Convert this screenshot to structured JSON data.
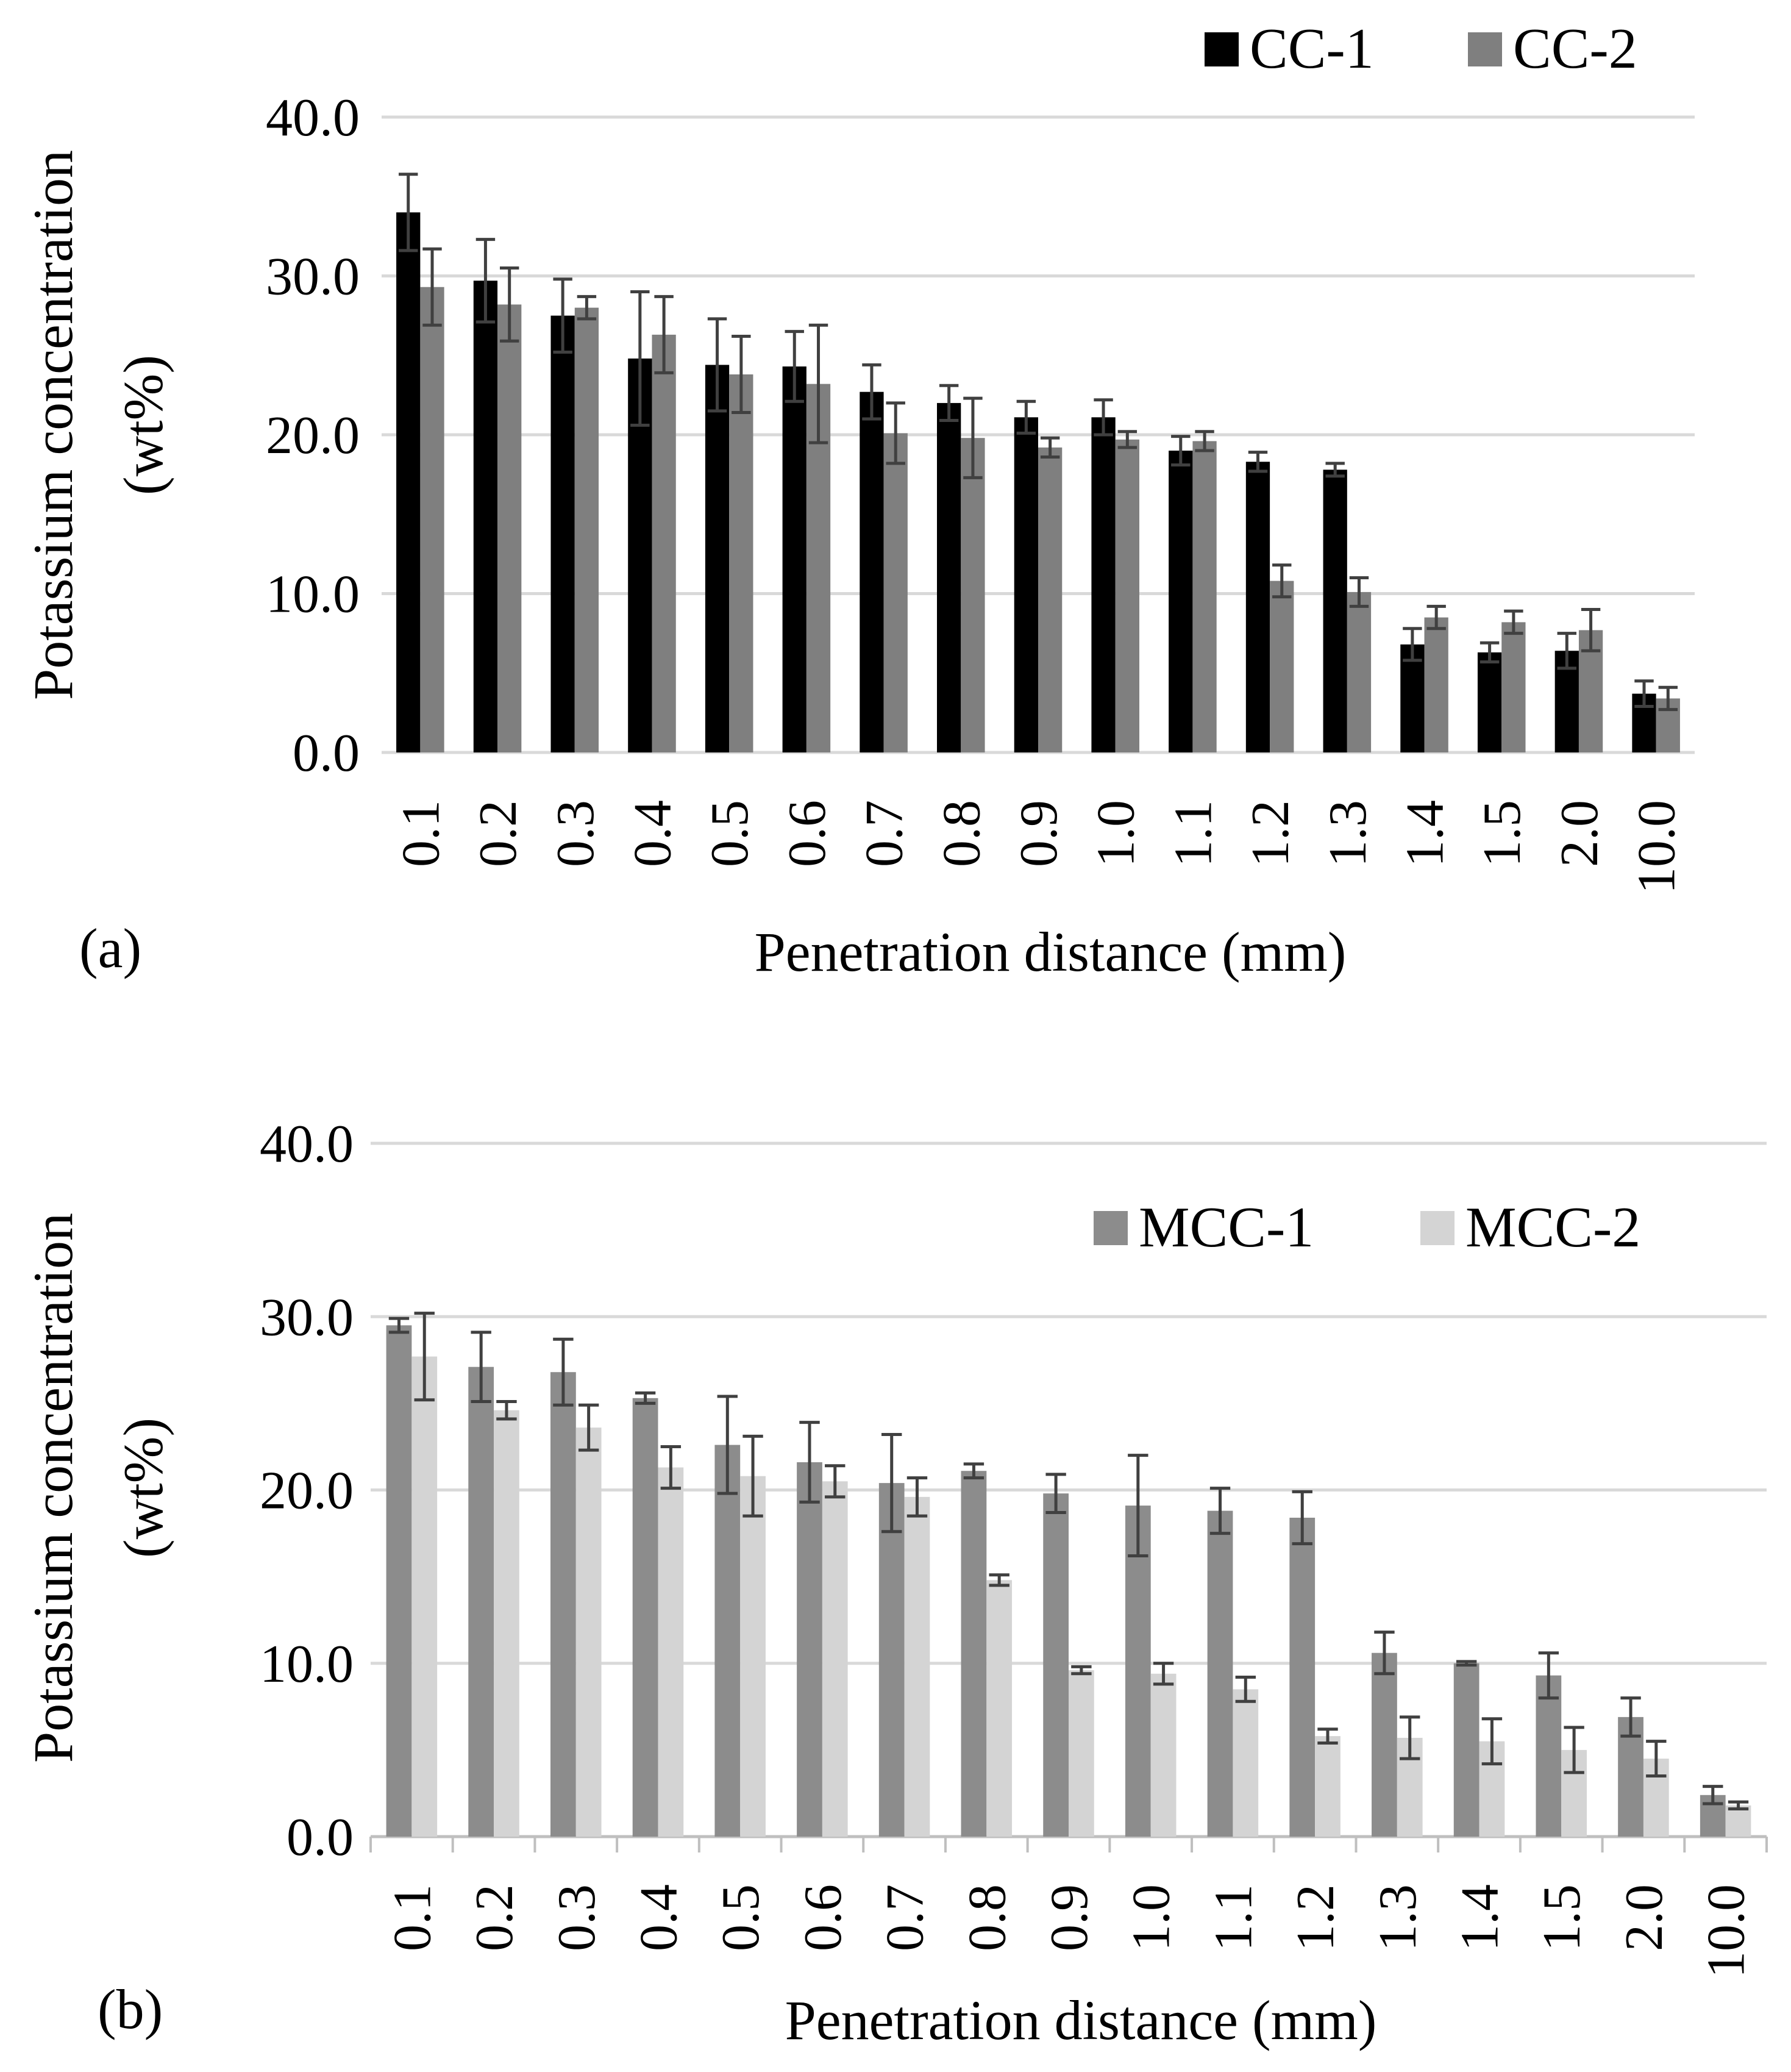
{
  "figure_labels": [
    "(a)",
    "(b)"
  ],
  "colors": {
    "cc1": "#000000",
    "cc2": "#7f7f7f",
    "mcc1": "#8c8c8c",
    "mcc2": "#d4d4d4",
    "grid": "#d9d9d9",
    "error": "#404040"
  },
  "chart_data": [
    {
      "panel": "(a)",
      "type": "bar",
      "title": "",
      "xlabel": "Penetration distance (mm)",
      "ylabel_line1": "Potassium concentration",
      "ylabel_line2": "(wt%)",
      "ylim": [
        0,
        40
      ],
      "yticks": [
        "0.0",
        "10.0",
        "20.0",
        "30.0",
        "40.0"
      ],
      "grid": true,
      "legend_position": "top-right",
      "categories": [
        "0.1",
        "0.2",
        "0.3",
        "0.4",
        "0.5",
        "0.6",
        "0.7",
        "0.8",
        "0.9",
        "1.0",
        "1.1",
        "1.2",
        "1.3",
        "1.4",
        "1.5",
        "2.0",
        "10.0"
      ],
      "series": [
        {
          "name": "CC-1",
          "color_key": "cc1",
          "values": [
            34.0,
            29.7,
            27.5,
            24.8,
            24.4,
            24.3,
            22.7,
            22.0,
            21.1,
            21.1,
            19.0,
            18.3,
            17.8,
            6.8,
            6.3,
            6.4,
            3.7
          ],
          "errors": [
            2.4,
            2.6,
            2.3,
            4.2,
            2.9,
            2.2,
            1.7,
            1.1,
            1.0,
            1.1,
            0.9,
            0.6,
            0.4,
            1.0,
            0.6,
            1.1,
            0.8
          ]
        },
        {
          "name": "CC-2",
          "color_key": "cc2",
          "values": [
            29.3,
            28.2,
            28.0,
            26.3,
            23.8,
            23.2,
            20.1,
            19.8,
            19.2,
            19.7,
            19.6,
            10.8,
            10.1,
            8.5,
            8.2,
            7.7,
            3.4
          ],
          "errors": [
            2.4,
            2.3,
            0.7,
            2.4,
            2.4,
            3.7,
            1.9,
            2.5,
            0.6,
            0.5,
            0.6,
            1.0,
            0.9,
            0.7,
            0.7,
            1.3,
            0.7
          ]
        }
      ]
    },
    {
      "panel": "(b)",
      "type": "bar",
      "title": "",
      "xlabel": "Penetration distance (mm)",
      "ylabel_line1": "Potassium concentration",
      "ylabel_line2": "(wt%)",
      "ylim": [
        0,
        40
      ],
      "yticks": [
        "0.0",
        "10.0",
        "20.0",
        "30.0",
        "40.0"
      ],
      "grid": true,
      "legend_position": "top-right",
      "categories": [
        "0.1",
        "0.2",
        "0.3",
        "0.4",
        "0.5",
        "0.6",
        "0.7",
        "0.8",
        "0.9",
        "1.0",
        "1.1",
        "1.2",
        "1.3",
        "1.4",
        "1.5",
        "2.0",
        "10.0"
      ],
      "series": [
        {
          "name": "MCC-1",
          "color_key": "mcc1",
          "values": [
            29.5,
            27.1,
            26.8,
            25.3,
            22.6,
            21.6,
            20.4,
            21.1,
            19.8,
            19.1,
            18.8,
            18.4,
            10.6,
            10.0,
            9.3,
            6.9,
            2.4
          ],
          "errors": [
            0.4,
            2.0,
            1.9,
            0.3,
            2.8,
            2.3,
            2.8,
            0.4,
            1.1,
            2.9,
            1.3,
            1.5,
            1.2,
            0.1,
            1.3,
            1.1,
            0.5
          ]
        },
        {
          "name": "MCC-2",
          "color_key": "mcc2",
          "values": [
            27.7,
            24.6,
            23.6,
            21.3,
            20.8,
            20.5,
            19.6,
            14.8,
            9.6,
            9.4,
            8.5,
            5.8,
            5.7,
            5.5,
            5.0,
            4.5,
            1.8
          ],
          "errors": [
            2.5,
            0.5,
            1.3,
            1.2,
            2.3,
            0.9,
            1.1,
            0.3,
            0.2,
            0.6,
            0.7,
            0.4,
            1.2,
            1.3,
            1.3,
            1.0,
            0.2
          ]
        }
      ]
    }
  ]
}
